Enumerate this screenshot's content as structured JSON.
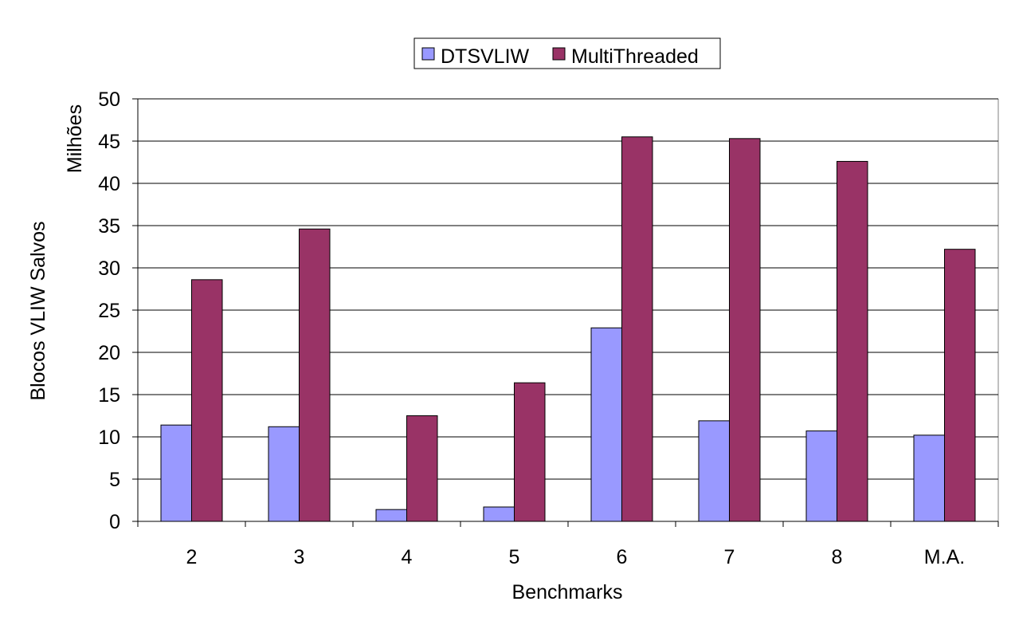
{
  "chart_data": {
    "type": "bar",
    "categories": [
      "2",
      "3",
      "4",
      "5",
      "6",
      "7",
      "8",
      "M.A."
    ],
    "series": [
      {
        "name": "DTSVLIW",
        "color": "#9999ff",
        "values": [
          11.4,
          11.2,
          1.4,
          1.7,
          22.9,
          11.9,
          10.7,
          10.2
        ]
      },
      {
        "name": "MultiThreaded",
        "color": "#993366",
        "values": [
          28.6,
          34.6,
          12.5,
          16.4,
          45.5,
          45.3,
          42.6,
          32.2
        ]
      }
    ],
    "xlabel": "Benchmarks",
    "ylabel": "Blocos VLIW Salvos",
    "yunit": "Milhões",
    "ylim": [
      0,
      50
    ],
    "yticks": [
      0,
      5,
      10,
      15,
      20,
      25,
      30,
      35,
      40,
      45,
      50
    ],
    "grid": true,
    "legend_position": "top"
  }
}
